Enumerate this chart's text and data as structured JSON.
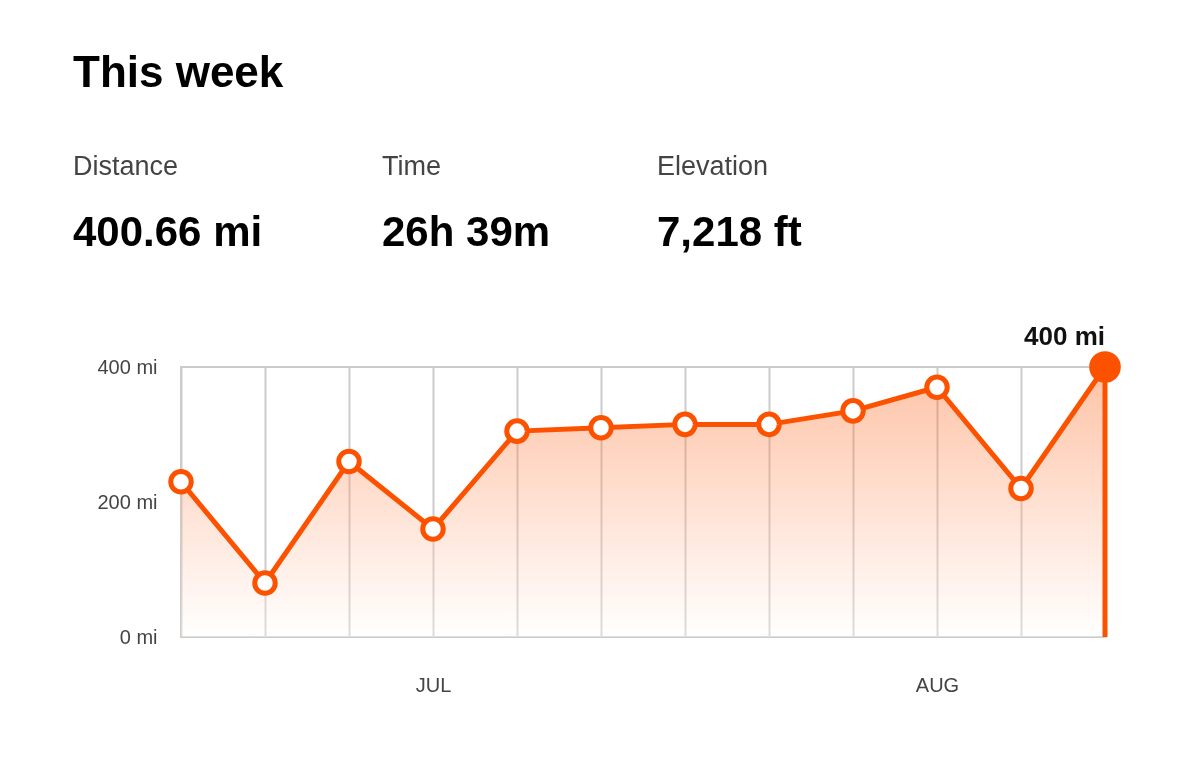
{
  "chart_data": {
    "type": "area",
    "title": "This week",
    "annotations": [
      "Distance",
      "400.66 mi",
      "Time",
      "26h 39m",
      "Elevation",
      "7,218 ft"
    ],
    "categories": [
      null,
      null,
      null,
      "JUL",
      null,
      null,
      null,
      null,
      null,
      "AUG",
      null,
      null
    ],
    "series": [
      {
        "color": "#fc5200",
        "values": [
          230,
          80,
          260,
          160,
          305,
          310,
          315,
          315,
          335,
          370,
          220,
          400
        ],
        "value_labels": [
          null,
          null,
          null,
          null,
          null,
          null,
          null,
          null,
          null,
          null,
          null,
          "400 mi"
        ]
      }
    ],
    "ylim": [
      0,
      400
    ],
    "yticks": [
      {
        "value": 0,
        "label": "0 mi"
      },
      {
        "value": 200,
        "label": "200 mi"
      },
      {
        "value": 400,
        "label": "400 mi"
      }
    ],
    "grid": "x",
    "marker": "circle",
    "line_style": "solid"
  }
}
